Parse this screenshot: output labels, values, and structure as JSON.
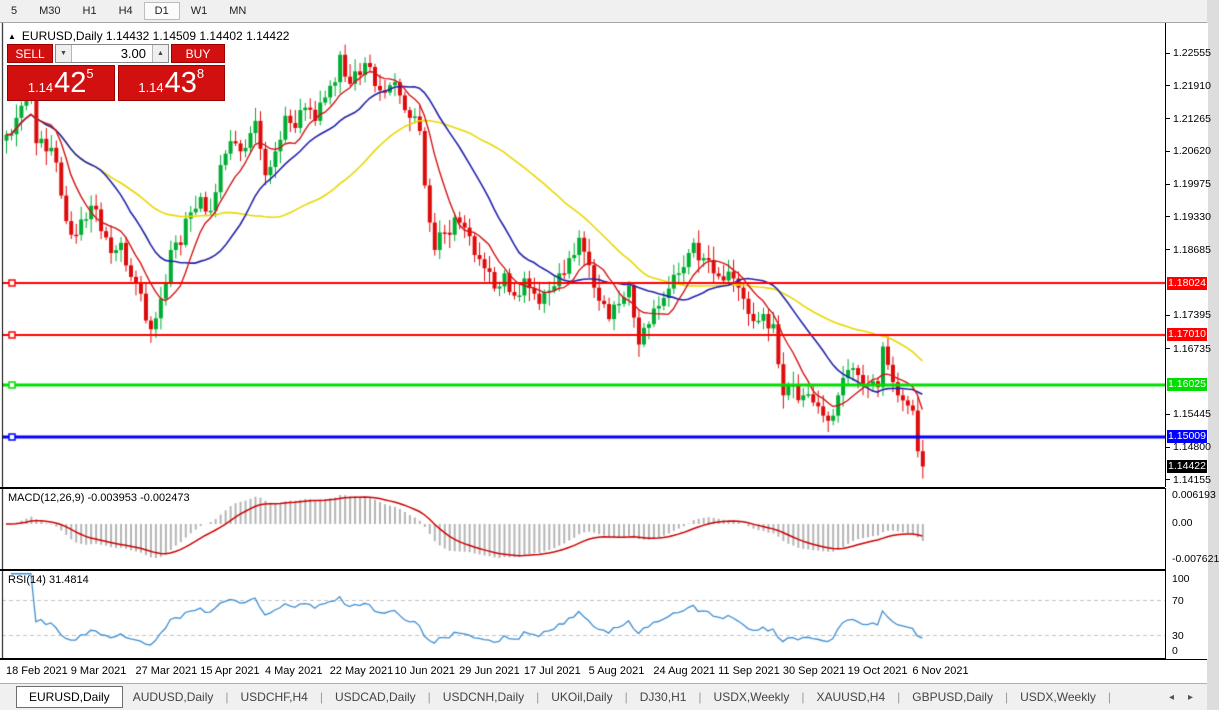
{
  "toolbar": {
    "timeframes": [
      "5",
      "M30",
      "H1",
      "H4",
      "D1",
      "W1",
      "MN"
    ],
    "active": "D1"
  },
  "chart": {
    "title": "EURUSD,Daily 1.14432 1.14509 1.14402 1.14422",
    "symbol": "EURUSD,Daily",
    "open": "1.14432",
    "high": "1.14509",
    "low": "1.14402",
    "close": "1.14422"
  },
  "trade_panel": {
    "sell_label": "SELL",
    "buy_label": "BUY",
    "lot_size": "3.00",
    "sell_price": {
      "small": "1.14",
      "big": "42",
      "sup": "5"
    },
    "buy_price": {
      "small": "1.14",
      "big": "43",
      "sup": "8"
    }
  },
  "price_axis": {
    "ticks": [
      "1.22555",
      "1.21910",
      "1.21265",
      "1.20620",
      "1.19975",
      "1.19330",
      "1.18685",
      "1.17395",
      "1.16735",
      "1.15445",
      "1.14800",
      "1.14155"
    ],
    "badges": [
      {
        "label": "1.18024",
        "bg": "#ff0000"
      },
      {
        "label": "1.17010",
        "bg": "#ff0000"
      },
      {
        "label": "1.16025",
        "bg": "#00dd00"
      },
      {
        "label": "1.15009",
        "bg": "#0000ff"
      },
      {
        "label": "1.14422",
        "bg": "#000000"
      }
    ]
  },
  "macd_pane": {
    "label": "MACD(12,26,9) -0.003953 -0.002473",
    "axis": [
      {
        "label": "0.006193",
        "y": 1
      },
      {
        "label": "0.00",
        "y": 29
      },
      {
        "label": "-0.007621",
        "y": 65
      }
    ]
  },
  "rsi_pane": {
    "label": "RSI(14) 31.4814",
    "axis": [
      {
        "label": "100",
        "y": 3
      },
      {
        "label": "70",
        "y": 25
      },
      {
        "label": "30",
        "y": 60
      },
      {
        "label": "0",
        "y": 75
      }
    ]
  },
  "date_axis": {
    "labels": [
      "18 Feb 2021",
      "9 Mar 2021",
      "27 Mar 2021",
      "15 Apr 2021",
      "4 May 2021",
      "22 May 2021",
      "10 Jun 2021",
      "29 Jun 2021",
      "17 Jul 2021",
      "5 Aug 2021",
      "24 Aug 2021",
      "11 Sep 2021",
      "30 Sep 2021",
      "19 Oct 2021",
      "6 Nov 2021"
    ],
    "bar_indices": [
      0,
      13,
      26,
      39,
      52,
      65,
      78,
      91,
      104,
      117,
      130,
      143,
      156,
      169,
      182
    ]
  },
  "tab_bar": {
    "tabs": [
      "EURUSD,Daily",
      "AUDUSD,Daily",
      "USDCHF,H4",
      "USDCAD,Daily",
      "USDCNH,Daily",
      "UKOil,Daily",
      "DJ30,H1",
      "USDX,Weekly",
      "XAUUSD,H4",
      "GBPUSD,Daily",
      "USDX,Weekly"
    ],
    "active_index": 0,
    "prev_arrow": "◂",
    "next_arrow": "▸"
  },
  "chart_data": {
    "type": "candlestick",
    "symbol": "EURUSD",
    "timeframe": "Daily",
    "bars": 185,
    "x_range": [
      "18 Feb 2021",
      "10 Nov 2021"
    ],
    "y_range": [
      1.14036,
      1.23086
    ],
    "grid": false,
    "colors": {
      "up_candle": "#00ad33",
      "down_candle": "#dd0b0b",
      "ma_fast": "#d21515",
      "ma_mid": "#2323aa",
      "ma_slow": "#e8d800",
      "macd_histogram": "#b4b4b4",
      "macd_signal": "#cc0000",
      "rsi_line": "#3f8fd2"
    },
    "price_keypoints": [
      [
        0,
        1.2095
      ],
      [
        2,
        1.2128
      ],
      [
        4,
        1.2165
      ],
      [
        5,
        1.2172
      ],
      [
        6,
        1.2078
      ],
      [
        8,
        1.2062
      ],
      [
        10,
        1.204
      ],
      [
        11,
        1.1975
      ],
      [
        13,
        1.1898
      ],
      [
        15,
        1.1928
      ],
      [
        17,
        1.1955
      ],
      [
        19,
        1.1905
      ],
      [
        21,
        1.1862
      ],
      [
        23,
        1.1882
      ],
      [
        25,
        1.1815
      ],
      [
        27,
        1.1782
      ],
      [
        29,
        1.1712
      ],
      [
        31,
        1.1772
      ],
      [
        33,
        1.1868
      ],
      [
        35,
        1.1878
      ],
      [
        37,
        1.1942
      ],
      [
        39,
        1.1972
      ],
      [
        41,
        1.1945
      ],
      [
        43,
        1.2035
      ],
      [
        45,
        1.2082
      ],
      [
        47,
        1.2062
      ],
      [
        49,
        1.2098
      ],
      [
        50,
        1.2122
      ],
      [
        52,
        1.2015
      ],
      [
        54,
        1.2062
      ],
      [
        56,
        1.2132
      ],
      [
        58,
        1.2108
      ],
      [
        60,
        1.2148
      ],
      [
        62,
        1.2122
      ],
      [
        64,
        1.2168
      ],
      [
        66,
        1.2198
      ],
      [
        67,
        1.2252
      ],
      [
        69,
        1.2195
      ],
      [
        71,
        1.2212
      ],
      [
        73,
        1.2228
      ],
      [
        75,
        1.2182
      ],
      [
        77,
        1.2192
      ],
      [
        79,
        1.2172
      ],
      [
        81,
        1.2128
      ],
      [
        83,
        1.2102
      ],
      [
        84,
        1.1995
      ],
      [
        85,
        1.1922
      ],
      [
        86,
        1.1868
      ],
      [
        88,
        1.1902
      ],
      [
        90,
        1.1932
      ],
      [
        92,
        1.1912
      ],
      [
        94,
        1.1858
      ],
      [
        96,
        1.1832
      ],
      [
        98,
        1.1792
      ],
      [
        100,
        1.1822
      ],
      [
        102,
        1.1778
      ],
      [
        104,
        1.1812
      ],
      [
        106,
        1.1782
      ],
      [
        107,
        1.1762
      ],
      [
        109,
        1.1788
      ],
      [
        111,
        1.1822
      ],
      [
        113,
        1.1852
      ],
      [
        115,
        1.1892
      ],
      [
        117,
        1.1838
      ],
      [
        119,
        1.1768
      ],
      [
        121,
        1.1732
      ],
      [
        123,
        1.1762
      ],
      [
        125,
        1.1798
      ],
      [
        127,
        1.1682
      ],
      [
        129,
        1.1722
      ],
      [
        131,
        1.1758
      ],
      [
        133,
        1.1792
      ],
      [
        135,
        1.1822
      ],
      [
        137,
        1.1862
      ],
      [
        138,
        1.1882
      ],
      [
        140,
        1.1852
      ],
      [
        142,
        1.1822
      ],
      [
        144,
        1.1808
      ],
      [
        146,
        1.1812
      ],
      [
        148,
        1.1772
      ],
      [
        150,
        1.1728
      ],
      [
        152,
        1.1742
      ],
      [
        154,
        1.1722
      ],
      [
        156,
        1.1582
      ],
      [
        158,
        1.1602
      ],
      [
        160,
        1.1582
      ],
      [
        162,
        1.1568
      ],
      [
        164,
        1.1542
      ],
      [
        165,
        1.1532
      ],
      [
        167,
        1.1582
      ],
      [
        169,
        1.1632
      ],
      [
        171,
        1.1622
      ],
      [
        173,
        1.1602
      ],
      [
        175,
        1.1598
      ],
      [
        176,
        1.1678
      ],
      [
        177,
        1.1642
      ],
      [
        178,
        1.1608
      ],
      [
        179,
        1.1582
      ],
      [
        180,
        1.1572
      ],
      [
        181,
        1.1562
      ],
      [
        182,
        1.1552
      ],
      [
        183,
        1.1472
      ],
      [
        184,
        1.1442
      ]
    ],
    "moving_averages": [
      {
        "period": 8,
        "color": "#d21515",
        "name": "fast"
      },
      {
        "period": 20,
        "color": "#2323aa",
        "name": "mid"
      },
      {
        "period": 45,
        "color": "#e8d800",
        "name": "slow"
      }
    ],
    "horizontal_lines": [
      {
        "price": 1.18024,
        "color": "#ff0000",
        "width": 2
      },
      {
        "price": 1.1701,
        "color": "#ff0000",
        "width": 2
      },
      {
        "price": 1.16025,
        "color": "#00dd00",
        "width": 3
      },
      {
        "price": 1.15009,
        "color": "#0000ff",
        "width": 3
      }
    ],
    "current_price": 1.14422,
    "indicators": [
      {
        "name": "MACD",
        "params": [
          12,
          26,
          9
        ],
        "last_values": [
          -0.003953,
          -0.002473
        ],
        "axis_max": 0.006193,
        "axis_min": -0.007621
      },
      {
        "name": "RSI",
        "params": [
          14
        ],
        "last_value": 31.4814,
        "levels": [
          70,
          30
        ]
      }
    ]
  }
}
